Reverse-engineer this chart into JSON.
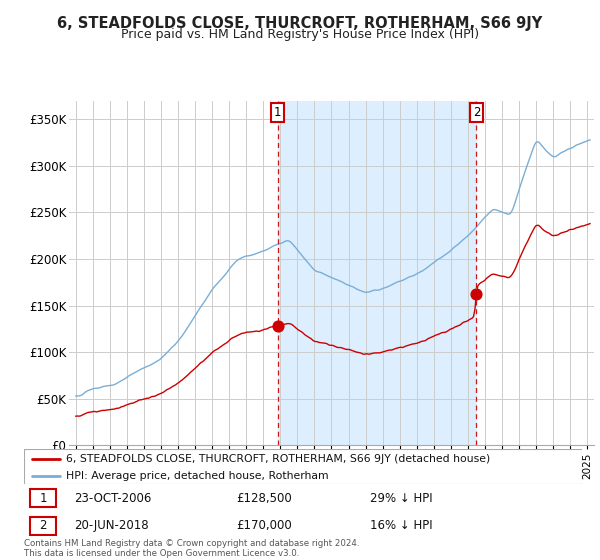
{
  "title": "6, STEADFOLDS CLOSE, THURCROFT, ROTHERHAM, S66 9JY",
  "subtitle": "Price paid vs. HM Land Registry's House Price Index (HPI)",
  "sale1_date": "23-OCT-2006",
  "sale1_price": 128500,
  "sale1_hpi_pct": "29% ↓ HPI",
  "sale2_date": "20-JUN-2018",
  "sale2_price": 170000,
  "sale2_hpi_pct": "16% ↓ HPI",
  "legend_red": "6, STEADFOLDS CLOSE, THURCROFT, ROTHERHAM, S66 9JY (detached house)",
  "legend_blue": "HPI: Average price, detached house, Rotherham",
  "footer": "Contains HM Land Registry data © Crown copyright and database right 2024.\nThis data is licensed under the Open Government Licence v3.0.",
  "ylim": [
    0,
    370000
  ],
  "yticks": [
    0,
    50000,
    100000,
    150000,
    200000,
    250000,
    300000,
    350000
  ],
  "ytick_labels": [
    "£0",
    "£50K",
    "£100K",
    "£150K",
    "£200K",
    "£250K",
    "£300K",
    "£350K"
  ],
  "sale1_year": 2006.81,
  "sale2_year": 2018.47,
  "vline_color": "#cc0000",
  "red_line_color": "#cc0000",
  "blue_line_color": "#7aaed6",
  "shade_color": "#ddeeff",
  "background_color": "#ffffff",
  "grid_color": "#cccccc"
}
